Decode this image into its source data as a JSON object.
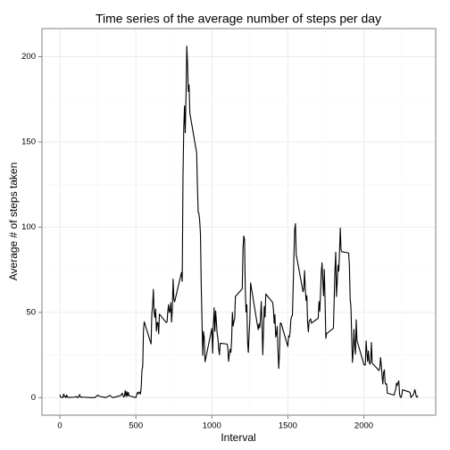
{
  "chart_data": {
    "type": "line",
    "title": "Time series of the average number of steps per day",
    "xlabel": "Interval",
    "ylabel": "Average # of steps taken",
    "x": [
      0,
      5,
      10,
      15,
      20,
      25,
      30,
      35,
      40,
      45,
      50,
      55,
      100,
      105,
      110,
      115,
      120,
      125,
      130,
      135,
      140,
      145,
      150,
      200,
      230,
      250,
      255,
      300,
      330,
      345,
      350,
      400,
      410,
      420,
      425,
      430,
      435,
      440,
      445,
      450,
      455,
      500,
      505,
      510,
      515,
      520,
      525,
      530,
      535,
      540,
      545,
      550,
      555,
      600,
      605,
      610,
      615,
      620,
      625,
      630,
      635,
      640,
      645,
      650,
      655,
      700,
      705,
      710,
      715,
      720,
      725,
      730,
      735,
      740,
      745,
      750,
      755,
      800,
      805,
      810,
      815,
      820,
      825,
      830,
      835,
      840,
      845,
      850,
      855,
      900,
      905,
      910,
      915,
      920,
      925,
      930,
      935,
      940,
      945,
      950,
      955,
      1000,
      1005,
      1010,
      1015,
      1020,
      1025,
      1030,
      1035,
      1040,
      1045,
      1050,
      1055,
      1100,
      1105,
      1110,
      1115,
      1120,
      1125,
      1130,
      1135,
      1140,
      1145,
      1150,
      1155,
      1200,
      1205,
      1210,
      1215,
      1220,
      1225,
      1230,
      1235,
      1240,
      1245,
      1250,
      1255,
      1300,
      1305,
      1310,
      1315,
      1320,
      1325,
      1330,
      1335,
      1340,
      1345,
      1350,
      1355,
      1400,
      1405,
      1410,
      1415,
      1420,
      1425,
      1430,
      1435,
      1440,
      1445,
      1450,
      1455,
      1500,
      1505,
      1510,
      1515,
      1520,
      1525,
      1530,
      1535,
      1540,
      1545,
      1550,
      1555,
      1600,
      1605,
      1610,
      1615,
      1620,
      1625,
      1630,
      1635,
      1640,
      1645,
      1650,
      1655,
      1700,
      1705,
      1710,
      1715,
      1720,
      1725,
      1730,
      1735,
      1740,
      1745,
      1750,
      1755,
      1800,
      1805,
      1810,
      1815,
      1820,
      1825,
      1830,
      1835,
      1840,
      1845,
      1850,
      1855,
      1900,
      1905,
      1910,
      1915,
      1920,
      1925,
      1930,
      1935,
      1940,
      1945,
      1950,
      1955,
      2000,
      2005,
      2010,
      2015,
      2020,
      2025,
      2030,
      2035,
      2040,
      2045,
      2050,
      2055,
      2100,
      2105,
      2110,
      2115,
      2120,
      2125,
      2130,
      2135,
      2140,
      2145,
      2150,
      2155,
      2200,
      2205,
      2210,
      2215,
      2220,
      2225,
      2230,
      2235,
      2240,
      2245,
      2250,
      2255,
      2300,
      2305,
      2310,
      2315,
      2320,
      2325,
      2330,
      2335,
      2340,
      2345,
      2350,
      2355
    ],
    "values": [
      1.7,
      0.3,
      0.1,
      0.2,
      0.1,
      2.1,
      0.5,
      0.9,
      0,
      1.5,
      0.3,
      0.1,
      0.3,
      0.7,
      0.2,
      0.3,
      0,
      1.1,
      1.8,
      0.2,
      0.2,
      0.4,
      0.3,
      0,
      0,
      1.5,
      0.9,
      0,
      1.3,
      0.1,
      0,
      1.2,
      2.6,
      0.3,
      1.1,
      4.1,
      0.7,
      3.5,
      0.8,
      3.1,
      1.1,
      0,
      1.6,
      3,
      2.2,
      3.3,
      3,
      2.1,
      6,
      16,
      18.3,
      39.5,
      44.5,
      31.5,
      49.3,
      53.8,
      63.5,
      50,
      47,
      52,
      39,
      44,
      44,
      37.4,
      49,
      44,
      44.4,
      50.5,
      54.5,
      49.9,
      50.9,
      55.7,
      44.3,
      52.3,
      69.5,
      57.8,
      56.2,
      73.4,
      68.2,
      129.4,
      157.5,
      171.2,
      155.4,
      177.3,
      206.2,
      195.9,
      179.6,
      183.4,
      167,
      143.5,
      124,
      109,
      108,
      103.7,
      95.9,
      66.2,
      45.2,
      24.8,
      38.8,
      35,
      21,
      40.6,
      26.1,
      42.4,
      52.7,
      38.9,
      50.8,
      44.3,
      37.4,
      34.7,
      28.3,
      25.1,
      31.9,
      31.4,
      29.7,
      21.3,
      25.5,
      28.4,
      26.5,
      33.4,
      50,
      42,
      44.6,
      46,
      59.3,
      63.9,
      87.7,
      94.8,
      92.8,
      63.4,
      50.2,
      54.5,
      32.4,
      26.5,
      37.7,
      45.1,
      67.3,
      42.3,
      39.9,
      43.3,
      40.9,
      46.2,
      56.4,
      42.8,
      25.1,
      39.9,
      53.5,
      47.3,
      60.8,
      55.8,
      51.9,
      43.6,
      48.7,
      35.5,
      37.5,
      41.8,
      27.5,
      17.1,
      26.1,
      43.6,
      43.8,
      30,
      36.1,
      35.5,
      38.8,
      45.9,
      47.8,
      48.1,
      65.3,
      82.9,
      98.7,
      102.1,
      84,
      62.1,
      64.1,
      74.5,
      63.2,
      56.9,
      59.8,
      43.9,
      38.6,
      44.7,
      45.5,
      46.2,
      43.7,
      46.6,
      56.3,
      50.7,
      61.2,
      73.4,
      79.1,
      68.9,
      59.7,
      75.1,
      56.5,
      34.8,
      37.5,
      40.7,
      58,
      74.7,
      85.3,
      59.3,
      67.8,
      77.7,
      74.2,
      85.3,
      99.5,
      86.6,
      85.6,
      84.9,
      77.8,
      58,
      53.4,
      36.3,
      20.7,
      27.4,
      40,
      30.2,
      25.5,
      45.7,
      33.5,
      19.6,
      19,
      19.3,
      33.3,
      26.8,
      21.2,
      27.3,
      21.3,
      19.5,
      21.3,
      32.3,
      20.2,
      15.9,
      17.2,
      23.5,
      19.2,
      12.5,
      8,
      14.7,
      16.3,
      8.7,
      7.8,
      8.1,
      2.6,
      1.5,
      3.7,
      4.8,
      8.5,
      7.1,
      8.7,
      9.8,
      2.2,
      0.3,
      0.1,
      1.6,
      4.6,
      3.3,
      2.8,
      0,
      0.8,
      1,
      1.6,
      2.6,
      4.7,
      3.3,
      0.6,
      0.2,
      1.1
    ],
    "color": "#000000",
    "xlim": [
      -118,
      2473
    ],
    "ylim": [
      -10.3,
      216.5
    ],
    "xticks": [
      0,
      500,
      1000,
      1500,
      2000
    ],
    "yticks": [
      0,
      50,
      100,
      150,
      200
    ],
    "xminor": [
      250,
      750,
      1250,
      1750,
      2250
    ],
    "yminor": [
      25,
      75,
      125,
      175
    ],
    "grid": true
  }
}
